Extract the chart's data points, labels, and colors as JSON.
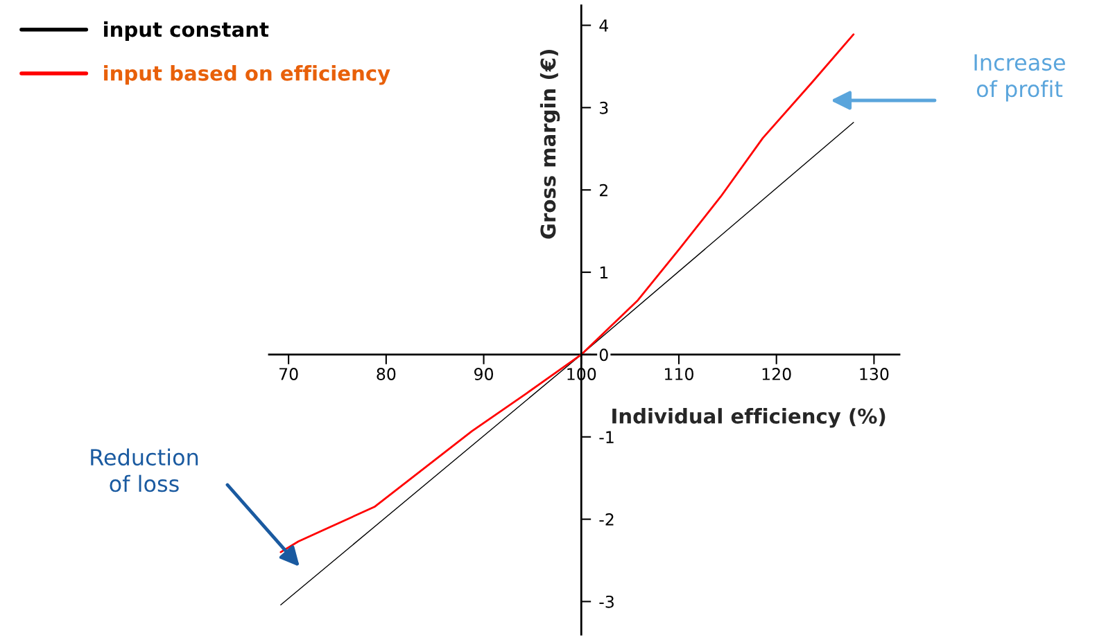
{
  "chart_data": {
    "type": "line",
    "xlabel": "Individual efficiency (%)",
    "ylabel": "Gross margin (€)",
    "xlim": [
      68,
      132.6
    ],
    "ylim": [
      -3.4,
      4.24
    ],
    "xticks": [
      70,
      80,
      90,
      100,
      110,
      120,
      130
    ],
    "yticks": [
      -3,
      -2,
      -1,
      0,
      1,
      2,
      3,
      4
    ],
    "series": [
      {
        "name": "input constant",
        "color": "#000000",
        "x": [
          69.2,
          100,
          127.9
        ],
        "values": [
          -3.04,
          0,
          2.82
        ]
      },
      {
        "name": "input based on efficiency",
        "color": "#ff0000",
        "x": [
          69.2,
          71.0,
          78.8,
          88.8,
          94.4,
          100,
          105.8,
          110.1,
          114.3,
          118.6,
          123.6,
          127.9
        ],
        "values": [
          -2.4,
          -2.27,
          -1.85,
          -0.93,
          -0.47,
          0,
          0.66,
          1.29,
          1.92,
          2.63,
          3.3,
          3.89
        ]
      }
    ],
    "annotations": [
      "Reduction\nof loss",
      "Increase\nof profit"
    ],
    "legend": "top left",
    "grid": false,
    "marker": "none",
    "line_style": "solid"
  }
}
